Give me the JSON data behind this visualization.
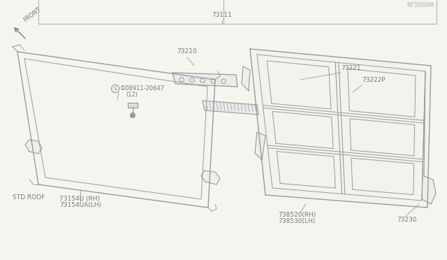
{
  "bg_color": "#f5f5f0",
  "line_color": "#999999",
  "text_color": "#777777",
  "title_ref": "N73000PA",
  "labels": {
    "std_roof": "STD ROOF",
    "part1a": "73154U (RH)",
    "part1b": "73154UA(LH)",
    "part2a": "738520(RH)",
    "part2b": "738530(LH)",
    "part3": "73230",
    "part4": "73222P",
    "part5": "73221",
    "part6": "73210",
    "part7": "73111",
    "part8a": "©08911-20647",
    "part8b": "(12)",
    "front": "FRONT"
  },
  "font_size": 7,
  "small_font": 6.5
}
